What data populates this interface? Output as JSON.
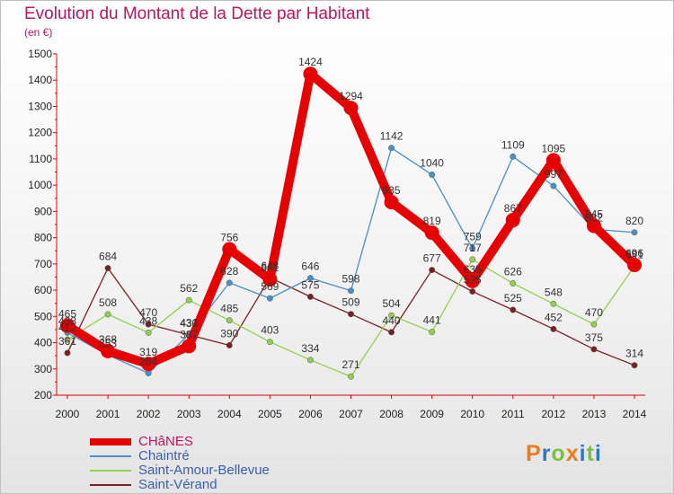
{
  "title": "Evolution du Montant de la Dette par Habitant",
  "unit_label": "(en €)",
  "logo": {
    "text": "Proxiti",
    "colors": [
      "#f07a1a",
      "#2a78c8",
      "#7bc043",
      "#f07a1a",
      "#2a78c8",
      "#7bc043",
      "#2a78c8"
    ]
  },
  "chart_data": {
    "type": "line",
    "title": "Evolution du Montant de la Dette par Habitant",
    "ylabel": "(en €)",
    "xlabel": "",
    "x": [
      "2000",
      "2001",
      "2002",
      "2003",
      "2004",
      "2005",
      "2006",
      "2007",
      "2008",
      "2009",
      "2010",
      "2011",
      "2012",
      "2013",
      "2014"
    ],
    "ylim": [
      200,
      1500
    ],
    "yticks": [
      200,
      300,
      400,
      500,
      600,
      700,
      800,
      900,
      1000,
      1100,
      1200,
      1300,
      1400,
      1500
    ],
    "grid": false,
    "legend_position": "bottom-left",
    "series": [
      {
        "name": "CHâNES",
        "color": "#e60000",
        "values": [
          465,
          368,
          319,
          387,
          756,
          641,
          1424,
          1294,
          935,
          819,
          635,
          867,
          1095,
          845,
          696
        ]
      },
      {
        "name": "Chaintré",
        "color": "#4b8fc7",
        "values": [
          438,
          353,
          284,
          431,
          628,
          569,
          646,
          598,
          1142,
          1040,
          759,
          1109,
          997,
          832,
          820
        ]
      },
      {
        "name": "Saint-Amour-Bellevue",
        "color": "#92d050",
        "values": [
          412,
          508,
          438,
          562,
          485,
          403,
          334,
          271,
          504,
          441,
          717,
          626,
          548,
          470,
          691
        ]
      },
      {
        "name": "Saint-Vérand",
        "color": "#7a2020",
        "values": [
          361,
          684,
          470,
          430,
          390,
          648,
          575,
          509,
          440,
          677,
          595,
          525,
          452,
          375,
          314
        ]
      }
    ]
  }
}
